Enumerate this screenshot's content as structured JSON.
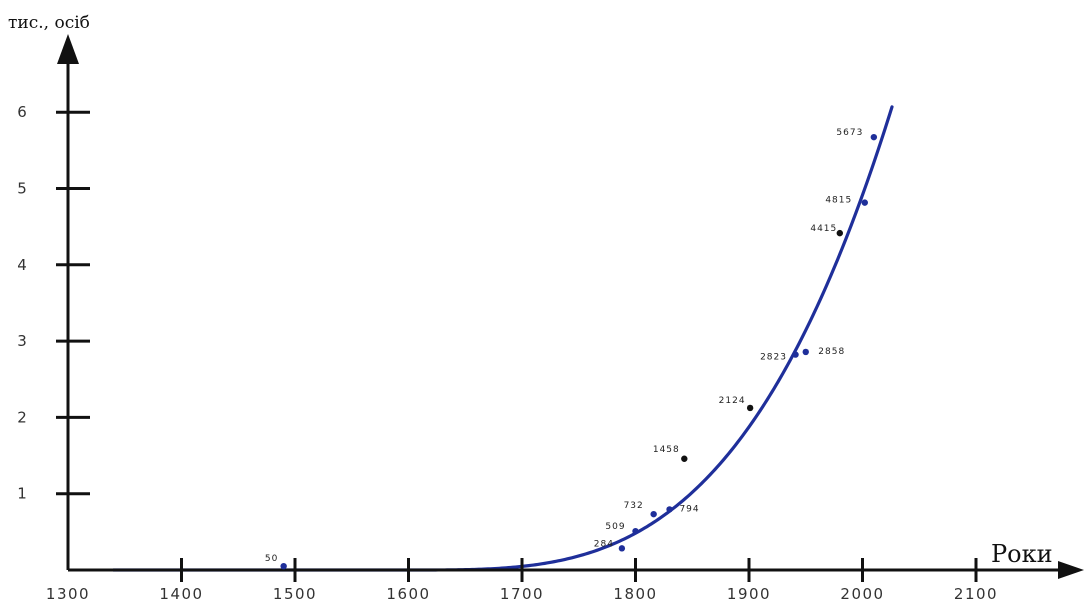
{
  "chart_data": {
    "type": "scatter",
    "ylabel": "тис., осіб",
    "xlabel": "Роки",
    "xlim": [
      1300,
      2100
    ],
    "ylim": [
      0,
      6
    ],
    "x_ticks": [
      "1300",
      "1400",
      "1500",
      "1600",
      "1700",
      "1800",
      "1900",
      "2000",
      "2100"
    ],
    "y_ticks": [
      "1",
      "2",
      "3",
      "4",
      "5",
      "6"
    ],
    "grid": false,
    "legend": "none",
    "colors": {
      "curve": "#1f2f9a",
      "axis": "#111111"
    },
    "points": [
      {
        "x": 1490,
        "y": 0.05,
        "label": "50"
      },
      {
        "x": 1788,
        "y": 0.284,
        "label": "284"
      },
      {
        "x": 1800,
        "y": 0.509,
        "label": "509"
      },
      {
        "x": 1816,
        "y": 0.732,
        "label": "732"
      },
      {
        "x": 1830,
        "y": 0.794,
        "label": "794"
      },
      {
        "x": 1843,
        "y": 1.458,
        "label": "1458"
      },
      {
        "x": 1901,
        "y": 2.124,
        "label": "2124"
      },
      {
        "x": 1941,
        "y": 2.823,
        "label": "2823"
      },
      {
        "x": 1950,
        "y": 2.858,
        "label": "2858"
      },
      {
        "x": 1980,
        "y": 4.415,
        "label": "4415"
      },
      {
        "x": 2002,
        "y": 4.815,
        "label": "4815"
      },
      {
        "x": 2010,
        "y": 5.673,
        "label": "5673"
      }
    ]
  }
}
